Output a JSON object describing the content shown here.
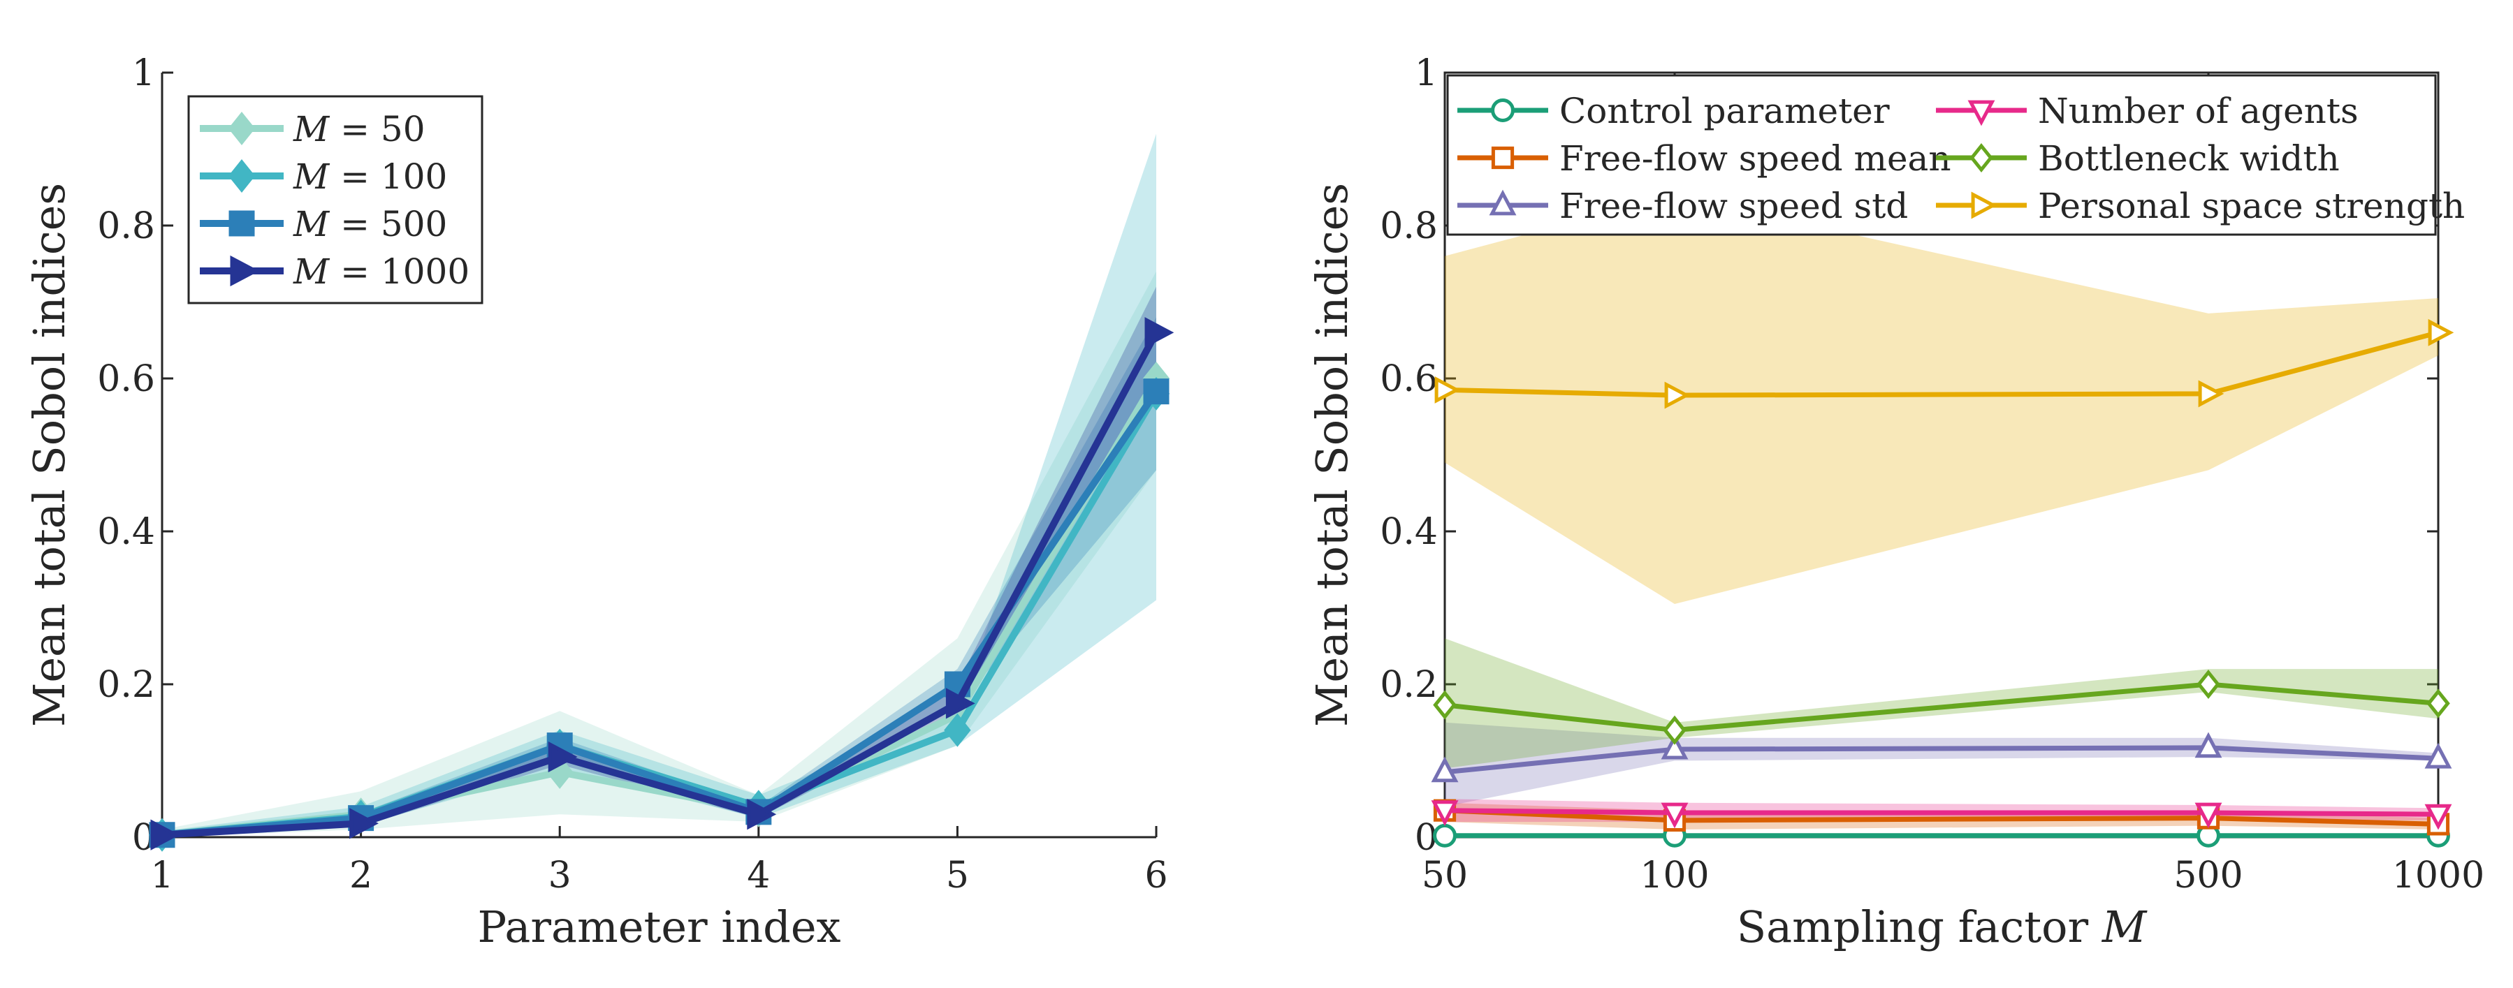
{
  "chart_data": [
    {
      "type": "line",
      "title": "",
      "xlabel": "Parameter index",
      "ylabel": "Mean total Sobol indices",
      "x": [
        1,
        2,
        3,
        4,
        5,
        6
      ],
      "xlim": [
        1,
        6
      ],
      "ylim": [
        0,
        1
      ],
      "xticks": [
        "1",
        "2",
        "3",
        "4",
        "5",
        "6"
      ],
      "yticks": [
        "0",
        "0.2",
        "0.4",
        "0.6",
        "0.8",
        "1"
      ],
      "legend_position": "top-left",
      "series": [
        {
          "name": "M = 50",
          "label_var": "M",
          "label_value": "= 50",
          "color": "#99d8c9",
          "marker": "diamond",
          "values": [
            0.003,
            0.03,
            0.085,
            0.035,
            0.16,
            0.6
          ],
          "band_low": [
            0.0,
            0.01,
            0.03,
            0.02,
            0.12,
            0.48
          ],
          "band_high": [
            0.01,
            0.06,
            0.165,
            0.055,
            0.26,
            0.74
          ]
        },
        {
          "name": "M = 100",
          "label_var": "M",
          "label_value": "= 100",
          "color": "#41b6c4",
          "marker": "diamond",
          "values": [
            0.003,
            0.027,
            0.12,
            0.04,
            0.14,
            0.58
          ],
          "band_low": [
            0.0,
            0.015,
            0.09,
            0.025,
            0.12,
            0.31
          ],
          "band_high": [
            0.008,
            0.04,
            0.14,
            0.055,
            0.16,
            0.92
          ]
        },
        {
          "name": "M = 500",
          "label_var": "M",
          "label_value": "= 500",
          "color": "#2c7fb8",
          "marker": "square",
          "values": [
            0.003,
            0.025,
            0.12,
            0.033,
            0.2,
            0.583
          ],
          "band_low": [
            0.0,
            0.018,
            0.1,
            0.025,
            0.17,
            0.48
          ],
          "band_high": [
            0.006,
            0.032,
            0.13,
            0.04,
            0.22,
            0.68
          ]
        },
        {
          "name": "M = 1000",
          "label_var": "M",
          "label_value": "= 1000",
          "color": "#253494",
          "marker": "triangle-right",
          "values": [
            0.003,
            0.018,
            0.105,
            0.03,
            0.175,
            0.66
          ],
          "band_low": [
            0.0,
            0.014,
            0.095,
            0.025,
            0.16,
            0.6
          ],
          "band_high": [
            0.006,
            0.022,
            0.12,
            0.035,
            0.2,
            0.72
          ]
        }
      ]
    },
    {
      "type": "line",
      "title": "",
      "xlabel": "Sampling factor",
      "xlabel_var": "M",
      "ylabel": "Mean total Sobol indices",
      "x": [
        50,
        100,
        500,
        1000
      ],
      "xscale": "log",
      "xlim": [
        50,
        1000
      ],
      "ylim": [
        0,
        1
      ],
      "xticks": [
        "50",
        "100",
        "500",
        "1000"
      ],
      "yticks": [
        "0",
        "0.2",
        "0.4",
        "0.6",
        "0.8",
        "1"
      ],
      "legend_position": "top",
      "series": [
        {
          "name": "Control parameter",
          "color": "#1b9e77",
          "marker": "circle",
          "values": [
            0.002,
            0.002,
            0.002,
            0.002
          ],
          "band_low": [
            0.0,
            0.0,
            0.0,
            0.0
          ],
          "band_high": [
            0.005,
            0.005,
            0.005,
            0.005
          ]
        },
        {
          "name": "Free-flow speed mean",
          "color": "#d95f02",
          "marker": "square",
          "values": [
            0.035,
            0.022,
            0.025,
            0.017
          ],
          "band_low": [
            0.02,
            0.01,
            0.015,
            0.01
          ],
          "band_high": [
            0.045,
            0.035,
            0.035,
            0.025
          ]
        },
        {
          "name": "Free-flow speed std",
          "color": "#7570b3",
          "marker": "triangle-up",
          "values": [
            0.085,
            0.115,
            0.117,
            0.103
          ],
          "band_low": [
            0.04,
            0.1,
            0.105,
            0.1
          ],
          "band_high": [
            0.15,
            0.13,
            0.13,
            0.11
          ]
        },
        {
          "name": "Number of agents",
          "color": "#e7298a",
          "marker": "triangle-down",
          "values": [
            0.035,
            0.032,
            0.032,
            0.03
          ],
          "band_low": [
            0.02,
            0.02,
            0.022,
            0.022
          ],
          "band_high": [
            0.05,
            0.045,
            0.042,
            0.038
          ]
        },
        {
          "name": "Bottleneck width",
          "color": "#66a61e",
          "marker": "diamond",
          "values": [
            0.173,
            0.14,
            0.2,
            0.175
          ],
          "band_low": [
            0.09,
            0.13,
            0.19,
            0.155
          ],
          "band_high": [
            0.26,
            0.15,
            0.22,
            0.22
          ]
        },
        {
          "name": "Personal space strength",
          "color": "#e6ab02",
          "marker": "triangle-right",
          "values": [
            0.585,
            0.578,
            0.58,
            0.66
          ],
          "band_low": [
            0.49,
            0.305,
            0.48,
            0.63
          ],
          "band_high": [
            0.76,
            0.84,
            0.685,
            0.705
          ]
        }
      ]
    }
  ]
}
